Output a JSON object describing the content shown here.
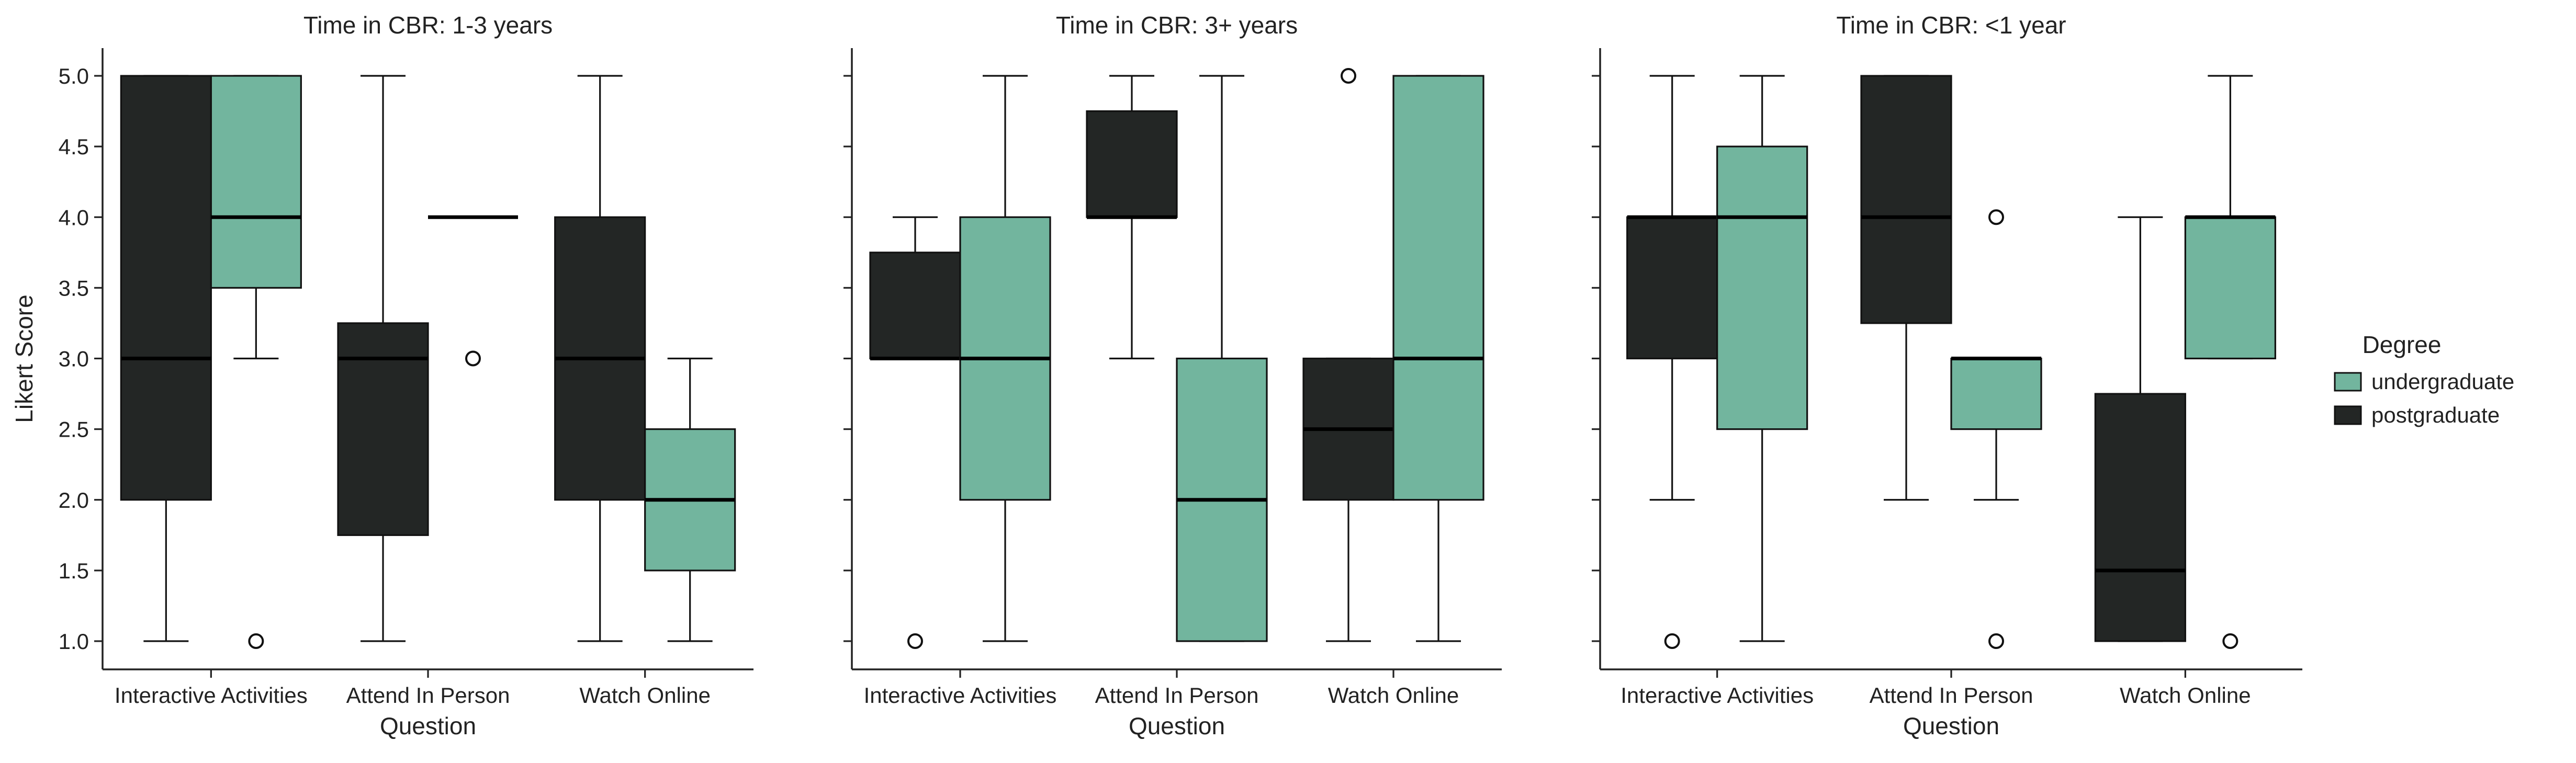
{
  "chart_data": {
    "type": "box",
    "ylabel": "Likert Score",
    "xlabel": "Question",
    "ylim": [
      0.9,
      5.2
    ],
    "yticks": [
      1.0,
      1.5,
      2.0,
      2.5,
      3.0,
      3.5,
      4.0,
      4.5,
      5.0
    ],
    "ytick_labels": [
      "1.0",
      "1.5",
      "2.0",
      "2.5",
      "3.0",
      "3.5",
      "4.0",
      "4.5",
      "5.0"
    ],
    "categories": [
      "Interactive Activities",
      "Attend In Person",
      "Watch Online"
    ],
    "legend": {
      "title": "Degree",
      "placement": "right",
      "entries": [
        {
          "name": "undergraduate",
          "color": "#72b59e"
        },
        {
          "name": "postgraduate",
          "color": "#232625"
        }
      ]
    },
    "colors": {
      "undergraduate": "#72b59e",
      "postgraduate": "#232625"
    },
    "facets": [
      {
        "title": "Time in CBR: 1-3 years",
        "boxes": [
          {
            "category": "Interactive Activities",
            "degree": "postgraduate",
            "whisker_low": 1.0,
            "q1": 2.0,
            "median": 3.0,
            "q3": 5.0,
            "whisker_high": 5.0,
            "outliers": []
          },
          {
            "category": "Interactive Activities",
            "degree": "undergraduate",
            "whisker_low": 3.0,
            "q1": 3.5,
            "median": 4.0,
            "q3": 5.0,
            "whisker_high": 5.0,
            "outliers": [
              1.0
            ]
          },
          {
            "category": "Attend In Person",
            "degree": "postgraduate",
            "whisker_low": 1.0,
            "q1": 1.75,
            "median": 3.0,
            "q3": 3.25,
            "whisker_high": 5.0,
            "outliers": []
          },
          {
            "category": "Attend In Person",
            "degree": "undergraduate",
            "whisker_low": 4.0,
            "q1": 4.0,
            "median": 4.0,
            "q3": 4.0,
            "whisker_high": 4.0,
            "outliers": [
              3.0
            ]
          },
          {
            "category": "Watch Online",
            "degree": "postgraduate",
            "whisker_low": 1.0,
            "q1": 2.0,
            "median": 3.0,
            "q3": 4.0,
            "whisker_high": 5.0,
            "outliers": []
          },
          {
            "category": "Watch Online",
            "degree": "undergraduate",
            "whisker_low": 1.0,
            "q1": 1.5,
            "median": 2.0,
            "q3": 2.5,
            "whisker_high": 3.0,
            "outliers": []
          }
        ]
      },
      {
        "title": "Time in CBR: 3+ years",
        "boxes": [
          {
            "category": "Interactive Activities",
            "degree": "postgraduate",
            "whisker_low": 3.0,
            "q1": 3.0,
            "median": 3.0,
            "q3": 3.75,
            "whisker_high": 4.0,
            "outliers": [
              1.0
            ]
          },
          {
            "category": "Interactive Activities",
            "degree": "undergraduate",
            "whisker_low": 1.0,
            "q1": 2.0,
            "median": 3.0,
            "q3": 4.0,
            "whisker_high": 5.0,
            "outliers": []
          },
          {
            "category": "Attend In Person",
            "degree": "postgraduate",
            "whisker_low": 3.0,
            "q1": 4.0,
            "median": 4.0,
            "q3": 4.75,
            "whisker_high": 5.0,
            "outliers": []
          },
          {
            "category": "Attend In Person",
            "degree": "undergraduate",
            "whisker_low": 1.0,
            "q1": 1.0,
            "median": 2.0,
            "q3": 3.0,
            "whisker_high": 5.0,
            "outliers": []
          },
          {
            "category": "Watch Online",
            "degree": "postgraduate",
            "whisker_low": 1.0,
            "q1": 2.0,
            "median": 2.5,
            "q3": 3.0,
            "whisker_high": 3.0,
            "outliers": [
              5.0
            ]
          },
          {
            "category": "Watch Online",
            "degree": "undergraduate",
            "whisker_low": 1.0,
            "q1": 2.0,
            "median": 3.0,
            "q3": 5.0,
            "whisker_high": 5.0,
            "outliers": []
          }
        ]
      },
      {
        "title": "Time in CBR: <1 year",
        "boxes": [
          {
            "category": "Interactive Activities",
            "degree": "postgraduate",
            "whisker_low": 2.0,
            "q1": 3.0,
            "median": 4.0,
            "q3": 4.0,
            "whisker_high": 5.0,
            "outliers": [
              1.0
            ]
          },
          {
            "category": "Interactive Activities",
            "degree": "undergraduate",
            "whisker_low": 1.0,
            "q1": 2.5,
            "median": 4.0,
            "q3": 4.5,
            "whisker_high": 5.0,
            "outliers": []
          },
          {
            "category": "Attend In Person",
            "degree": "postgraduate",
            "whisker_low": 2.0,
            "q1": 3.25,
            "median": 4.0,
            "q3": 5.0,
            "whisker_high": 5.0,
            "outliers": []
          },
          {
            "category": "Attend In Person",
            "degree": "undergraduate",
            "whisker_low": 2.0,
            "q1": 2.5,
            "median": 3.0,
            "q3": 3.0,
            "whisker_high": 3.0,
            "outliers": [
              4.0,
              1.0
            ]
          },
          {
            "category": "Watch Online",
            "degree": "postgraduate",
            "whisker_low": 1.0,
            "q1": 1.0,
            "median": 1.5,
            "q3": 2.75,
            "whisker_high": 4.0,
            "outliers": []
          },
          {
            "category": "Watch Online",
            "degree": "undergraduate",
            "whisker_low": 3.0,
            "q1": 3.0,
            "median": 4.0,
            "q3": 4.0,
            "whisker_high": 5.0,
            "outliers": [
              1.0
            ]
          }
        ]
      }
    ]
  }
}
